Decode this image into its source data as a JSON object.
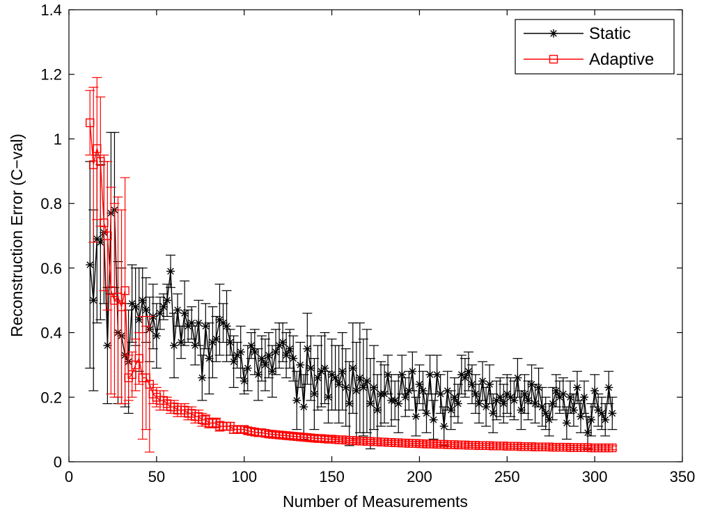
{
  "chart_data": {
    "type": "line",
    "title": "",
    "xlabel": "Number of Measurements",
    "ylabel": "Reconstruction Error (C−val)",
    "xlim": [
      0,
      350
    ],
    "ylim": [
      0,
      1.4
    ],
    "xticks": [
      0,
      50,
      100,
      150,
      200,
      250,
      300,
      350
    ],
    "xtick_labels": [
      "0",
      "50",
      "100",
      "150",
      "200",
      "250",
      "300",
      "350"
    ],
    "yticks": [
      0,
      0.2,
      0.4,
      0.6,
      0.8,
      1,
      1.2,
      1.4
    ],
    "ytick_labels": [
      "0",
      "0.2",
      "0.4",
      "0.6",
      "0.8",
      "1",
      "1.2",
      "1.4"
    ],
    "grid": false,
    "legend_position": "top-right",
    "series": [
      {
        "name": "Static",
        "color": "#000000",
        "marker": "asterisk",
        "x": [
          12,
          14,
          16,
          18,
          20,
          22,
          24,
          26,
          28,
          30,
          32,
          34,
          36,
          38,
          40,
          42,
          44,
          46,
          48,
          50,
          52,
          54,
          56,
          58,
          60,
          62,
          64,
          66,
          68,
          70,
          72,
          74,
          76,
          78,
          80,
          82,
          84,
          86,
          88,
          90,
          92,
          94,
          96,
          98,
          100,
          102,
          104,
          106,
          108,
          110,
          112,
          114,
          116,
          118,
          120,
          122,
          124,
          126,
          128,
          130,
          132,
          134,
          136,
          138,
          140,
          142,
          144,
          146,
          148,
          150,
          152,
          154,
          156,
          158,
          160,
          162,
          164,
          166,
          168,
          170,
          172,
          174,
          176,
          178,
          180,
          182,
          184,
          186,
          188,
          190,
          192,
          194,
          196,
          198,
          200,
          202,
          204,
          206,
          208,
          210,
          212,
          214,
          216,
          218,
          220,
          222,
          224,
          226,
          228,
          230,
          232,
          234,
          236,
          238,
          240,
          242,
          244,
          246,
          248,
          250,
          252,
          254,
          256,
          258,
          260,
          262,
          264,
          266,
          268,
          270,
          272,
          274,
          276,
          278,
          280,
          282,
          284,
          286,
          288,
          290,
          292,
          294,
          296,
          298,
          300,
          302,
          304,
          306,
          308,
          310
        ],
        "values": [
          0.61,
          0.5,
          0.69,
          0.68,
          0.71,
          0.36,
          0.77,
          0.78,
          0.4,
          0.39,
          0.33,
          0.31,
          0.49,
          0.48,
          0.44,
          0.5,
          0.47,
          0.41,
          0.45,
          0.39,
          0.46,
          0.48,
          0.5,
          0.59,
          0.36,
          0.47,
          0.37,
          0.46,
          0.42,
          0.43,
          0.36,
          0.43,
          0.26,
          0.42,
          0.32,
          0.37,
          0.38,
          0.44,
          0.43,
          0.42,
          0.37,
          0.31,
          0.33,
          0.34,
          0.25,
          0.29,
          0.36,
          0.34,
          0.27,
          0.32,
          0.3,
          0.33,
          0.28,
          0.34,
          0.36,
          0.37,
          0.33,
          0.35,
          0.32,
          0.19,
          0.3,
          0.17,
          0.35,
          0.29,
          0.21,
          0.26,
          0.28,
          0.29,
          0.2,
          0.27,
          0.26,
          0.24,
          0.28,
          0.23,
          0.18,
          0.29,
          0.22,
          0.26,
          0.23,
          0.25,
          0.18,
          0.23,
          0.16,
          0.21,
          0.21,
          0.27,
          0.19,
          0.19,
          0.18,
          0.27,
          0.2,
          0.22,
          0.28,
          0.14,
          0.24,
          0.22,
          0.15,
          0.27,
          0.13,
          0.27,
          0.21,
          0.11,
          0.22,
          0.16,
          0.2,
          0.18,
          0.27,
          0.26,
          0.28,
          0.24,
          0.21,
          0.18,
          0.25,
          0.17,
          0.24,
          0.15,
          0.19,
          0.2,
          0.18,
          0.21,
          0.2,
          0.19,
          0.26,
          0.16,
          0.21,
          0.19,
          0.24,
          0.18,
          0.23,
          0.17,
          0.15,
          0.13,
          0.18,
          0.22,
          0.2,
          0.21,
          0.12,
          0.2,
          0.16,
          0.23,
          0.14,
          0.2,
          0.09,
          0.13,
          0.22,
          0.16,
          0.15,
          0.13,
          0.23,
          0.15
        ],
        "errors": [
          0.32,
          0.28,
          0.26,
          0.24,
          0.22,
          0.18,
          0.25,
          0.24,
          0.22,
          0.21,
          0.16,
          0.16,
          0.12,
          0.12,
          0.16,
          0.1,
          0.1,
          0.1,
          0.1,
          0.1,
          0.05,
          0.04,
          0.05,
          0.05,
          0.1,
          0.05,
          0.05,
          0.1,
          0.05,
          0.05,
          0.06,
          0.07,
          0.07,
          0.07,
          0.11,
          0.11,
          0.07,
          0.11,
          0.06,
          0.11,
          0.04,
          0.08,
          0.04,
          0.08,
          0.04,
          0.07,
          0.04,
          0.07,
          0.08,
          0.07,
          0.08,
          0.07,
          0.08,
          0.07,
          0.07,
          0.06,
          0.07,
          0.06,
          0.07,
          0.09,
          0.07,
          0.1,
          0.11,
          0.1,
          0.11,
          0.1,
          0.11,
          0.11,
          0.08,
          0.11,
          0.1,
          0.12,
          0.12,
          0.12,
          0.13,
          0.14,
          0.15,
          0.17,
          0.15,
          0.16,
          0.14,
          0.13,
          0.11,
          0.1,
          0.09,
          0.06,
          0.08,
          0.06,
          0.09,
          0.06,
          0.06,
          0.06,
          0.06,
          0.06,
          0.06,
          0.06,
          0.06,
          0.06,
          0.06,
          0.06,
          0.06,
          0.06,
          0.06,
          0.06,
          0.06,
          0.06,
          0.06,
          0.06,
          0.06,
          0.06,
          0.06,
          0.06,
          0.06,
          0.06,
          0.06,
          0.06,
          0.06,
          0.06,
          0.06,
          0.06,
          0.06,
          0.06,
          0.06,
          0.06,
          0.06,
          0.06,
          0.06,
          0.06,
          0.06,
          0.06,
          0.05,
          0.05,
          0.05,
          0.05,
          0.05,
          0.05,
          0.05,
          0.05,
          0.05,
          0.05,
          0.05,
          0.05,
          0.05,
          0.05,
          0.05,
          0.05,
          0.05,
          0.05,
          0.05,
          0.05
        ]
      },
      {
        "name": "Adaptive",
        "color": "#ff0000",
        "marker": "square",
        "x": [
          12,
          14,
          16,
          18,
          20,
          22,
          24,
          26,
          28,
          30,
          32,
          34,
          36,
          38,
          40,
          42,
          44,
          46,
          48,
          50,
          52,
          54,
          56,
          58,
          60,
          62,
          64,
          66,
          68,
          70,
          72,
          74,
          76,
          78,
          80,
          82,
          84,
          86,
          88,
          90,
          92,
          94,
          96,
          98,
          100,
          102,
          104,
          106,
          108,
          110,
          112,
          114,
          116,
          118,
          120,
          122,
          124,
          126,
          128,
          130,
          132,
          134,
          136,
          138,
          140,
          142,
          144,
          146,
          148,
          150,
          152,
          154,
          156,
          158,
          160,
          162,
          164,
          166,
          168,
          170,
          172,
          174,
          176,
          178,
          180,
          182,
          184,
          186,
          188,
          190,
          192,
          194,
          196,
          198,
          200,
          202,
          204,
          206,
          208,
          210,
          212,
          214,
          216,
          218,
          220,
          222,
          224,
          226,
          228,
          230,
          232,
          234,
          236,
          238,
          240,
          242,
          244,
          246,
          248,
          250,
          252,
          254,
          256,
          258,
          260,
          262,
          264,
          266,
          268,
          270,
          272,
          274,
          276,
          278,
          280,
          282,
          284,
          286,
          288,
          290,
          292,
          294,
          296,
          298,
          300,
          302,
          304,
          306,
          308,
          310
        ],
        "values": [
          1.05,
          0.92,
          0.97,
          0.93,
          0.74,
          0.7,
          0.53,
          0.5,
          0.51,
          0.48,
          0.53,
          0.26,
          0.27,
          0.3,
          0.32,
          0.26,
          0.26,
          0.24,
          0.21,
          0.2,
          0.19,
          0.19,
          0.18,
          0.17,
          0.17,
          0.16,
          0.16,
          0.16,
          0.15,
          0.15,
          0.14,
          0.14,
          0.13,
          0.13,
          0.12,
          0.12,
          0.12,
          0.11,
          0.11,
          0.11,
          0.11,
          0.1,
          0.1,
          0.1,
          0.1,
          0.096,
          0.094,
          0.092,
          0.09,
          0.09,
          0.088,
          0.086,
          0.085,
          0.084,
          0.083,
          0.082,
          0.081,
          0.08,
          0.079,
          0.078,
          0.077,
          0.076,
          0.075,
          0.074,
          0.073,
          0.072,
          0.072,
          0.071,
          0.07,
          0.07,
          0.069,
          0.068,
          0.068,
          0.067,
          0.066,
          0.066,
          0.065,
          0.064,
          0.064,
          0.063,
          0.063,
          0.062,
          0.062,
          0.061,
          0.061,
          0.06,
          0.06,
          0.059,
          0.059,
          0.058,
          0.058,
          0.057,
          0.057,
          0.057,
          0.056,
          0.056,
          0.055,
          0.055,
          0.055,
          0.054,
          0.054,
          0.054,
          0.053,
          0.053,
          0.053,
          0.052,
          0.052,
          0.052,
          0.051,
          0.051,
          0.051,
          0.05,
          0.05,
          0.05,
          0.05,
          0.049,
          0.049,
          0.049,
          0.049,
          0.048,
          0.048,
          0.048,
          0.048,
          0.047,
          0.047,
          0.047,
          0.047,
          0.046,
          0.046,
          0.046,
          0.046,
          0.046,
          0.045,
          0.045,
          0.045,
          0.045,
          0.045,
          0.044,
          0.044,
          0.044,
          0.044,
          0.044,
          0.044,
          0.043,
          0.043,
          0.043,
          0.043,
          0.043,
          0.043,
          0.043
        ],
        "errors": [
          0.1,
          0.24,
          0.22,
          0.2,
          0.21,
          0.23,
          0.32,
          0.3,
          0.31,
          0.3,
          0.35,
          0.07,
          0.07,
          0.08,
          0.08,
          0.19,
          0.16,
          0.21,
          0.03,
          0.03,
          0.03,
          0.03,
          0.02,
          0.02,
          0.02,
          0.02,
          0.02,
          0.02,
          0.02,
          0.02,
          0.02,
          0.02,
          0.02,
          0.015,
          0.015,
          0.015,
          0.015,
          0.015,
          0.012,
          0.012,
          0.012,
          0.012,
          0.01,
          0.01,
          0.01,
          0.01,
          0.01,
          0.01,
          0.01,
          0.01,
          0.01,
          0.008,
          0.008,
          0.008,
          0.008,
          0.008,
          0.008,
          0.008,
          0.008,
          0.008,
          0.008,
          0.008,
          0.008,
          0.008,
          0.008,
          0.008,
          0.008,
          0.008,
          0.008,
          0.008,
          0.006,
          0.006,
          0.006,
          0.006,
          0.006,
          0.006,
          0.006,
          0.006,
          0.006,
          0.006,
          0.006,
          0.006,
          0.006,
          0.006,
          0.006,
          0.006,
          0.006,
          0.006,
          0.006,
          0.006,
          0.006,
          0.006,
          0.006,
          0.006,
          0.006,
          0.006,
          0.006,
          0.006,
          0.006,
          0.006,
          0.006,
          0.006,
          0.006,
          0.006,
          0.006,
          0.006,
          0.006,
          0.006,
          0.006,
          0.006,
          0.006,
          0.006,
          0.006,
          0.006,
          0.006,
          0.006,
          0.006,
          0.006,
          0.006,
          0.006,
          0.006,
          0.006,
          0.006,
          0.006,
          0.006,
          0.006,
          0.006,
          0.006,
          0.006,
          0.006,
          0.006,
          0.006,
          0.006,
          0.006,
          0.006,
          0.006,
          0.006,
          0.006,
          0.006,
          0.006,
          0.006,
          0.006,
          0.006,
          0.006,
          0.006,
          0.006,
          0.006,
          0.006,
          0.006,
          0.006
        ]
      }
    ]
  }
}
